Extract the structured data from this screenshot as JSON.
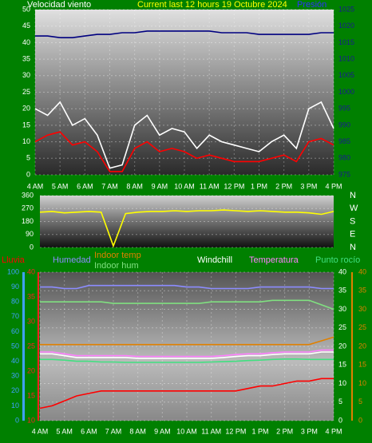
{
  "chart_data": [
    {
      "type": "line",
      "title": "Current last 12 hours 19 Octubre 2024",
      "x": [
        4,
        4.5,
        5,
        5.5,
        6,
        6.5,
        7,
        7.5,
        8,
        8.5,
        9,
        9.5,
        10,
        10.5,
        11,
        11.5,
        12,
        12.5,
        13,
        13.5,
        14,
        14.5,
        15,
        15.5,
        16
      ],
      "xlim": [
        4,
        16
      ],
      "xticks": [
        {
          "value": 4,
          "label": "4 AM"
        },
        {
          "value": 5,
          "label": "5 AM"
        },
        {
          "value": 6,
          "label": "6 AM"
        },
        {
          "value": 7,
          "label": "7 AM"
        },
        {
          "value": 8,
          "label": "8 AM"
        },
        {
          "value": 9,
          "label": "9 AM"
        },
        {
          "value": 10,
          "label": "10 AM"
        },
        {
          "value": 11,
          "label": "11 AM"
        },
        {
          "value": 12,
          "label": "12 PM"
        },
        {
          "value": 13,
          "label": "1 PM"
        },
        {
          "value": 14,
          "label": "2 PM"
        },
        {
          "value": 15,
          "label": "3 PM"
        },
        {
          "value": 16,
          "label": "4 PM"
        }
      ],
      "ylim": [
        0,
        50
      ],
      "yticks": [
        0,
        5,
        10,
        15,
        20,
        25,
        30,
        35,
        40,
        45,
        50
      ],
      "y2lim": [
        975,
        1025
      ],
      "y2ticks": [
        975,
        980,
        985,
        990,
        995,
        1000,
        1005,
        1010,
        1015,
        1020,
        1025
      ],
      "grid": true,
      "series": [
        {
          "name": "Velocidad viento",
          "color": "#ffffff",
          "values": [
            20,
            18,
            22,
            15,
            17,
            12,
            2,
            3,
            15,
            18,
            12,
            14,
            13,
            8,
            12,
            10,
            9,
            8,
            7,
            10,
            12,
            8,
            20,
            22,
            14
          ]
        },
        {
          "color": "#ff0000",
          "values": [
            10,
            12,
            13,
            9,
            10,
            7,
            1,
            1,
            8,
            10,
            7,
            8,
            7,
            5,
            6,
            5,
            4,
            4,
            4,
            5,
            6,
            4,
            10,
            11,
            9
          ]
        },
        {
          "name": "Presión",
          "color": "#000080",
          "axis": "y2",
          "values": [
            1017,
            1017,
            1016.5,
            1016.5,
            1017,
            1017.5,
            1017.5,
            1018,
            1018,
            1018.5,
            1018.5,
            1018.5,
            1018.5,
            1018.5,
            1018.5,
            1018,
            1018,
            1018,
            1017.5,
            1017.5,
            1017.5,
            1017.5,
            1017.5,
            1018,
            1018
          ]
        }
      ]
    },
    {
      "type": "line",
      "x": [
        4,
        4.5,
        5,
        5.5,
        6,
        6.5,
        7,
        7.5,
        8,
        8.5,
        9,
        9.5,
        10,
        10.5,
        11,
        11.5,
        12,
        12.5,
        13,
        13.5,
        14,
        14.5,
        15,
        15.5,
        16
      ],
      "xlim": [
        4,
        16
      ],
      "ylim": [
        0,
        360
      ],
      "yticks": [
        0,
        90,
        180,
        270,
        360
      ],
      "direction_labels": [
        "N",
        "E",
        "S",
        "W",
        "N"
      ],
      "grid": true,
      "series": [
        {
          "color": "#ffff00",
          "values": [
            245,
            250,
            240,
            245,
            250,
            245,
            10,
            235,
            245,
            250,
            250,
            255,
            250,
            255,
            255,
            260,
            255,
            250,
            255,
            250,
            245,
            245,
            240,
            230,
            250
          ]
        }
      ]
    },
    {
      "type": "line",
      "x": [
        4,
        4.5,
        5,
        5.5,
        6,
        6.5,
        7,
        7.5,
        8,
        8.5,
        9,
        9.5,
        10,
        10.5,
        11,
        11.5,
        12,
        12.5,
        13,
        13.5,
        14,
        14.5,
        15,
        15.5,
        16
      ],
      "xlim": [
        4,
        16
      ],
      "xticks": [
        {
          "value": 4,
          "label": "4 AM"
        },
        {
          "value": 5,
          "label": "5 AM"
        },
        {
          "value": 6,
          "label": "6 AM"
        },
        {
          "value": 7,
          "label": "7 AM"
        },
        {
          "value": 8,
          "label": "8 AM"
        },
        {
          "value": 9,
          "label": "9 AM"
        },
        {
          "value": 10,
          "label": "10 AM"
        },
        {
          "value": 11,
          "label": "11 AM"
        },
        {
          "value": 12,
          "label": "12 PM"
        },
        {
          "value": 13,
          "label": "1 PM"
        },
        {
          "value": 14,
          "label": "2 PM"
        },
        {
          "value": 15,
          "label": "3 PM"
        },
        {
          "value": 16,
          "label": "4 PM"
        }
      ],
      "ylim": [
        0,
        100
      ],
      "yticks": [
        0,
        10,
        20,
        30,
        40,
        50,
        60,
        70,
        80,
        90,
        100
      ],
      "y2lim": [
        0,
        40
      ],
      "y2ticks": [
        0,
        5,
        10,
        15,
        20,
        25,
        30,
        35,
        40
      ],
      "y3lim": [
        10,
        40
      ],
      "y3ticks": [
        10,
        15,
        20,
        25,
        30,
        35,
        40
      ],
      "grid": true,
      "series": [
        {
          "name": "Humedad",
          "color": "#8c8cff",
          "values": [
            90,
            90,
            89,
            89,
            91,
            91,
            91,
            91,
            91,
            91,
            91,
            91,
            90,
            90,
            89,
            89,
            89,
            89,
            90,
            90,
            90,
            90,
            90,
            89,
            89
          ]
        },
        {
          "name": "Indoor hum",
          "color": "#80e080",
          "values": [
            80,
            80,
            80,
            80,
            80,
            80,
            79,
            79,
            79,
            79,
            79,
            79,
            79,
            79,
            80,
            80,
            80,
            80,
            80,
            81,
            81,
            81,
            81,
            78,
            75
          ]
        },
        {
          "name": "Indoor temp",
          "color": "#e08000",
          "axis": "y2",
          "values": [
            20.5,
            20.5,
            20.5,
            20.5,
            20.5,
            20.5,
            20.5,
            20.5,
            20.5,
            20.5,
            20.5,
            20.5,
            20.5,
            20.5,
            20.5,
            20.5,
            20.5,
            20.5,
            20.5,
            20.5,
            20.5,
            20.5,
            20.5,
            21.5,
            22.5
          ]
        },
        {
          "name": "Windchill",
          "color": "#ffffff",
          "axis": "y2",
          "values": [
            18,
            18,
            17.5,
            17,
            17,
            17,
            17,
            17,
            16.8,
            16.8,
            16.8,
            16.8,
            16.8,
            16.8,
            16.8,
            17,
            17.3,
            17.5,
            17.5,
            17.8,
            18,
            18,
            18,
            18.5,
            18.5
          ]
        },
        {
          "name": "Temperatura",
          "color": "#ff80ff",
          "axis": "y2",
          "values": [
            18.5,
            18.5,
            18,
            17.5,
            17.5,
            17.5,
            17.5,
            17.5,
            17.3,
            17.3,
            17.3,
            17.3,
            17.3,
            17.3,
            17.3,
            17.5,
            17.8,
            18,
            18,
            18.3,
            18.5,
            18.5,
            18.5,
            19,
            19
          ]
        },
        {
          "name": "Punto rocío",
          "color": "#40e080",
          "axis": "y2",
          "values": [
            16.5,
            16.5,
            16.3,
            16,
            16,
            15.8,
            15.8,
            15.7,
            15.7,
            15.7,
            15.7,
            15.7,
            15.7,
            15.7,
            15.8,
            15.9,
            16,
            16.2,
            16.3,
            16.5,
            16.6,
            16.6,
            16.5,
            16.5,
            16.5
          ]
        },
        {
          "name": "Lluvia",
          "color": "#ff0000",
          "axis": "y3",
          "values": [
            12.5,
            13,
            14,
            15,
            15.5,
            16,
            16,
            16,
            16,
            16,
            16,
            16,
            16,
            16,
            16,
            16,
            16,
            16.5,
            17,
            17,
            17.5,
            18,
            18,
            18.5,
            18.5
          ]
        }
      ]
    }
  ]
}
